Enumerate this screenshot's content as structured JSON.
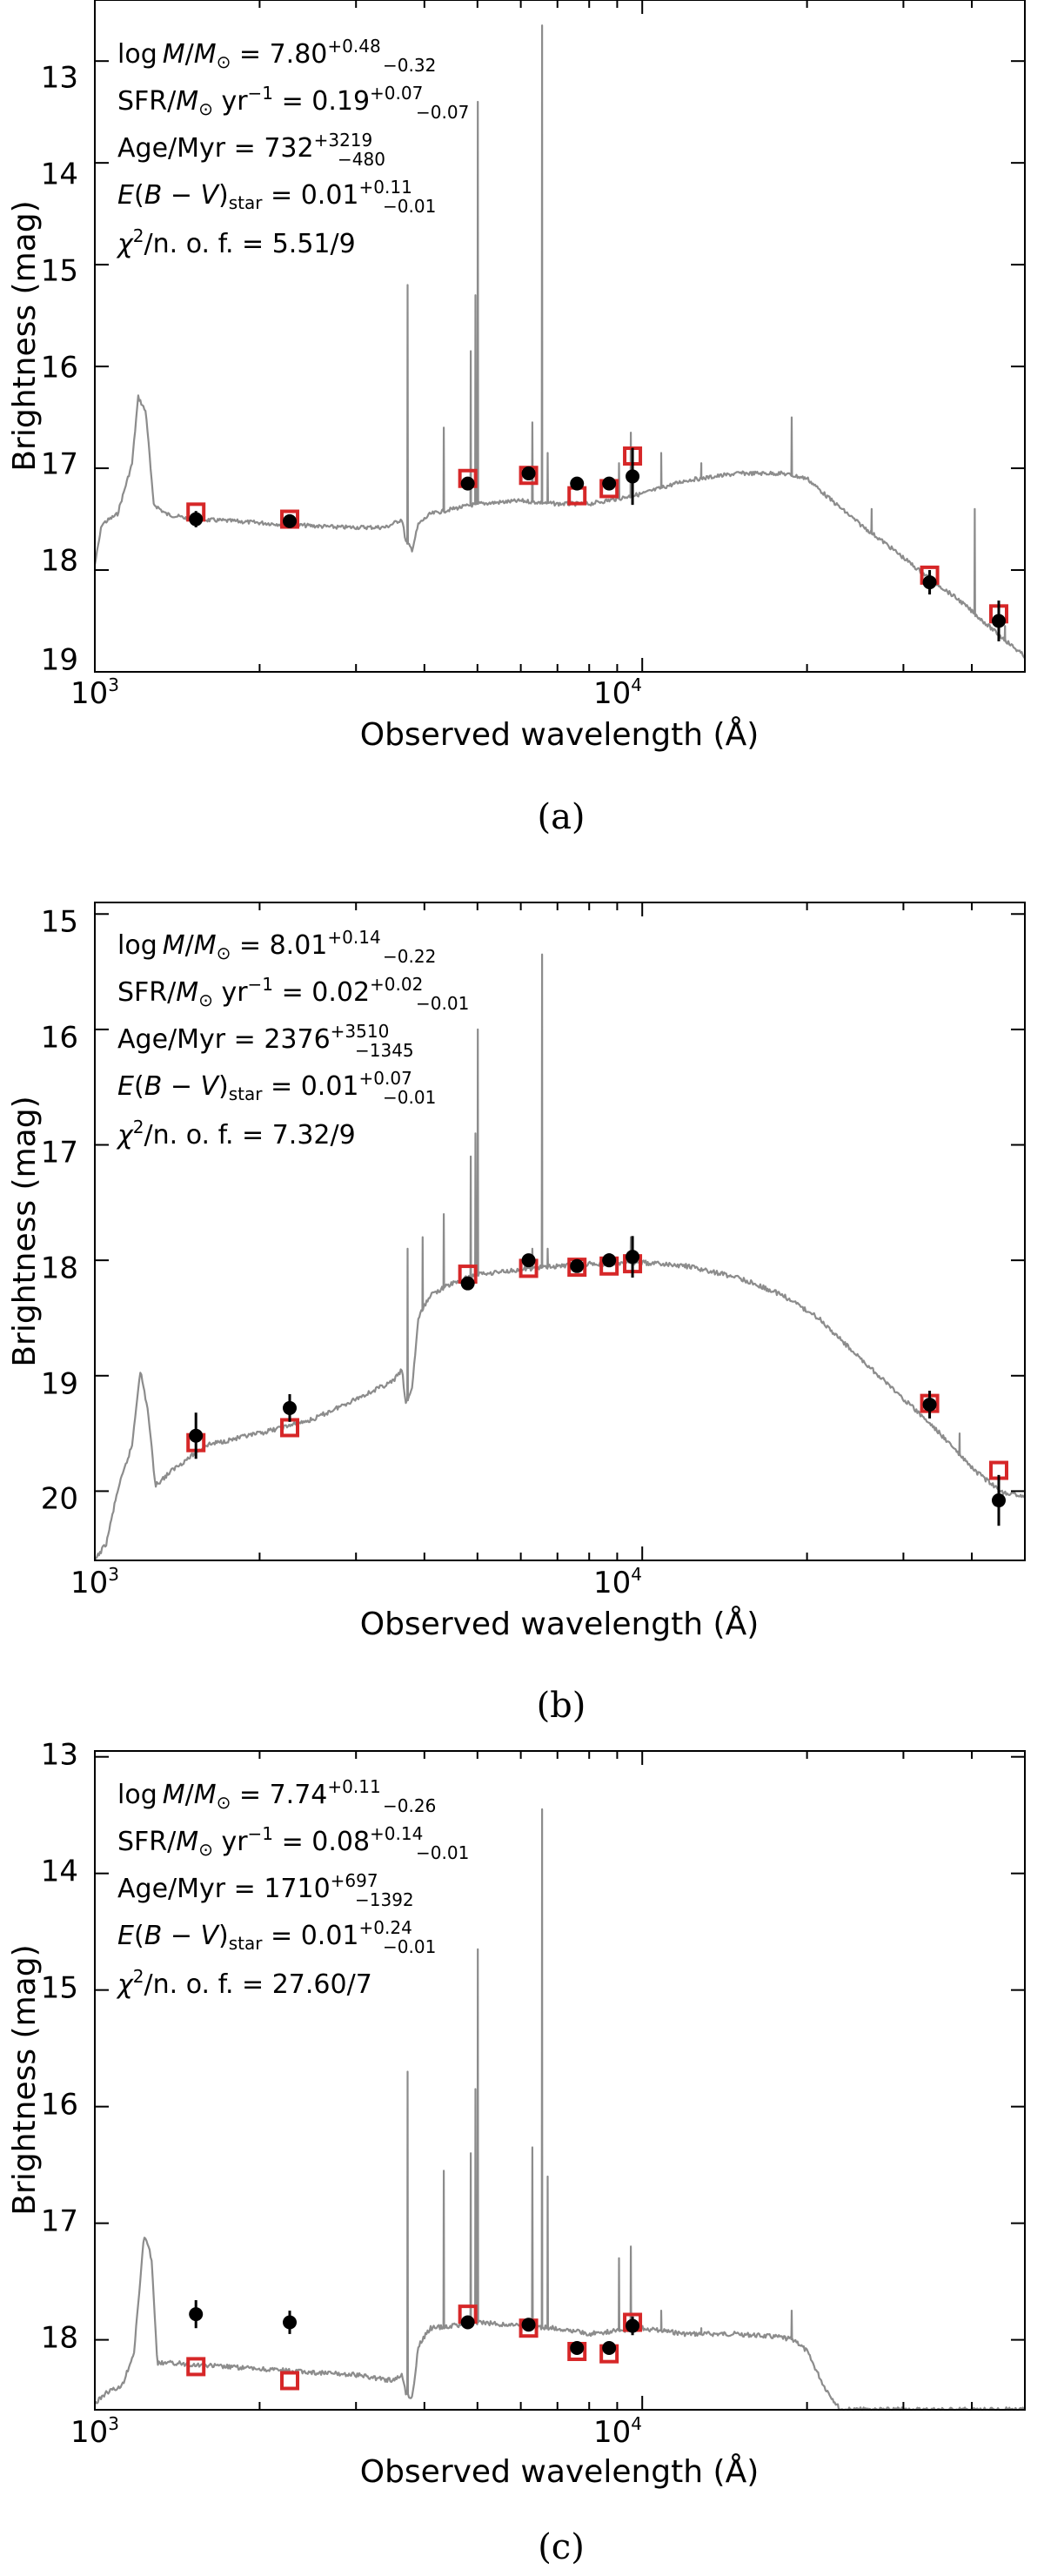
{
  "colors": {
    "model": "#8c8c8c",
    "observed": "#000000",
    "synthetic": "#d62728",
    "axis": "#000000"
  },
  "chart_data": [
    {
      "type": "scatter",
      "panel": "(a)",
      "xlabel": "Observed wavelength (Å)",
      "ylabel": "Brightness (mag)",
      "xscale": "log",
      "xlim": [
        1000,
        50000
      ],
      "ylim": [
        19,
        12.4
      ],
      "x_ticks": [
        {
          "value": 1000,
          "base": "10",
          "exp": "3"
        },
        {
          "value": 10000,
          "base": "10",
          "exp": "4"
        }
      ],
      "y_ticks": [
        "13",
        "14",
        "15",
        "16",
        "17",
        "18",
        "19"
      ],
      "annotations": {
        "logm": {
          "prefix": "log",
          "var": "M",
          "mid": "/",
          "var2": "M",
          "sub": "⊙",
          "value": " = 7.80",
          "up": "+0.48",
          "dn": "−0.32"
        },
        "sfr": {
          "prefix": "SFR/",
          "var": "M",
          "sub": "⊙",
          "mid": " yr",
          "supx": "−1",
          "value": " = 0.19",
          "up": "+0.07",
          "dn": "−0.07"
        },
        "age": {
          "prefix": "Age/Myr",
          "value": " = 732",
          "up": "+3219",
          "dn": "−480"
        },
        "ebv": {
          "var": "E",
          "mid": "(",
          "var2": "B",
          "mid2": " − ",
          "var3": "V",
          "mid3": ")",
          "sub": "star",
          "value": " = 0.01",
          "up": "+0.11",
          "dn": "−0.01"
        },
        "chi": {
          "var": "χ",
          "supx": "2",
          "mid": "/n. o. f. = 5.51/9"
        }
      },
      "model_spectrum": {
        "continuum": [
          [
            1000,
            17.95
          ],
          [
            1030,
            17.55
          ],
          [
            1100,
            17.45
          ],
          [
            1170,
            16.95
          ],
          [
            1200,
            16.3
          ],
          [
            1240,
            16.45
          ],
          [
            1280,
            17.35
          ],
          [
            1350,
            17.45
          ],
          [
            1500,
            17.5
          ],
          [
            1800,
            17.52
          ],
          [
            2200,
            17.55
          ],
          [
            2800,
            17.58
          ],
          [
            3400,
            17.58
          ],
          [
            3640,
            17.5
          ],
          [
            3700,
            17.72
          ],
          [
            3800,
            17.8
          ],
          [
            3900,
            17.55
          ],
          [
            4100,
            17.45
          ],
          [
            4500,
            17.4
          ],
          [
            5000,
            17.35
          ],
          [
            6000,
            17.32
          ],
          [
            7000,
            17.35
          ],
          [
            8000,
            17.35
          ],
          [
            9000,
            17.3
          ],
          [
            10000,
            17.25
          ],
          [
            12000,
            17.12
          ],
          [
            15000,
            17.05
          ],
          [
            18000,
            17.05
          ],
          [
            20000,
            17.1
          ],
          [
            22000,
            17.3
          ],
          [
            25000,
            17.55
          ],
          [
            28000,
            17.75
          ],
          [
            32000,
            18.0
          ],
          [
            38000,
            18.3
          ],
          [
            44000,
            18.6
          ],
          [
            50000,
            18.85
          ]
        ],
        "lines": [
          [
            3727,
            15.2
          ],
          [
            4340,
            16.6
          ],
          [
            4861,
            15.85
          ],
          [
            4959,
            15.3
          ],
          [
            5007,
            13.4
          ],
          [
            6300,
            16.55
          ],
          [
            6563,
            12.65
          ],
          [
            6717,
            16.85
          ],
          [
            9069,
            16.95
          ],
          [
            9531,
            16.65
          ],
          [
            10830,
            16.85
          ],
          [
            12820,
            16.95
          ],
          [
            18750,
            16.5
          ],
          [
            26250,
            17.4
          ],
          [
            40500,
            17.4
          ],
          [
            46000,
            18.55
          ]
        ]
      },
      "observed": [
        {
          "x": 1530,
          "y": 17.5,
          "err": 0.08
        },
        {
          "x": 2270,
          "y": 17.52,
          "err": 0.05
        },
        {
          "x": 4800,
          "y": 17.15,
          "err": 0.05
        },
        {
          "x": 6200,
          "y": 17.05,
          "err": 0.05
        },
        {
          "x": 7600,
          "y": 17.15,
          "err": 0.05
        },
        {
          "x": 8700,
          "y": 17.15,
          "err": 0.05
        },
        {
          "x": 9600,
          "y": 17.08,
          "err": 0.28
        },
        {
          "x": 33500,
          "y": 18.12,
          "err": 0.12
        },
        {
          "x": 44800,
          "y": 18.5,
          "err": 0.2
        }
      ],
      "synthetic": [
        {
          "x": 1530,
          "y": 17.43
        },
        {
          "x": 2270,
          "y": 17.5
        },
        {
          "x": 4800,
          "y": 17.1
        },
        {
          "x": 6200,
          "y": 17.07
        },
        {
          "x": 7600,
          "y": 17.27
        },
        {
          "x": 8700,
          "y": 17.2
        },
        {
          "x": 9600,
          "y": 16.88
        },
        {
          "x": 33500,
          "y": 18.05
        },
        {
          "x": 44800,
          "y": 18.43
        }
      ]
    },
    {
      "type": "scatter",
      "panel": "(b)",
      "xlabel": "Observed wavelength (Å)",
      "ylabel": "Brightness (mag)",
      "xscale": "log",
      "xlim": [
        1000,
        50000
      ],
      "ylim": [
        20.6,
        14.9
      ],
      "x_ticks": [
        {
          "value": 1000,
          "base": "10",
          "exp": "3"
        },
        {
          "value": 10000,
          "base": "10",
          "exp": "4"
        }
      ],
      "y_ticks": [
        "15",
        "16",
        "17",
        "18",
        "19",
        "20"
      ],
      "annotations": {
        "logm": {
          "prefix": "log",
          "var": "M",
          "mid": "/",
          "var2": "M",
          "sub": "⊙",
          "value": " = 8.01",
          "up": "+0.14",
          "dn": "−0.22"
        },
        "sfr": {
          "prefix": "SFR/",
          "var": "M",
          "sub": "⊙",
          "mid": " yr",
          "supx": "−1",
          "value": " = 0.02",
          "up": "+0.02",
          "dn": "−0.01"
        },
        "age": {
          "prefix": "Age/Myr",
          "value": " = 2376",
          "up": "+3510",
          "dn": "−1345"
        },
        "ebv": {
          "var": "E",
          "mid": "(",
          "var2": "B",
          "mid2": " − ",
          "var3": "V",
          "mid3": ")",
          "sub": "star",
          "value": " = 0.01",
          "up": "+0.07",
          "dn": "−0.01"
        },
        "chi": {
          "var": "χ",
          "supx": "2",
          "mid": "/n. o. f. = 7.32/9"
        }
      },
      "model_spectrum": {
        "continuum": [
          [
            1000,
            20.6
          ],
          [
            1050,
            20.45
          ],
          [
            1100,
            20.0
          ],
          [
            1170,
            19.6
          ],
          [
            1210,
            18.95
          ],
          [
            1250,
            19.3
          ],
          [
            1290,
            19.95
          ],
          [
            1400,
            19.8
          ],
          [
            1600,
            19.6
          ],
          [
            2000,
            19.5
          ],
          [
            2500,
            19.38
          ],
          [
            3000,
            19.2
          ],
          [
            3500,
            19.05
          ],
          [
            3640,
            18.95
          ],
          [
            3700,
            19.25
          ],
          [
            3800,
            19.1
          ],
          [
            3900,
            18.5
          ],
          [
            4100,
            18.3
          ],
          [
            4500,
            18.2
          ],
          [
            5000,
            18.12
          ],
          [
            6000,
            18.08
          ],
          [
            7000,
            18.05
          ],
          [
            8000,
            18.03
          ],
          [
            9000,
            18.03
          ],
          [
            10000,
            18.02
          ],
          [
            12000,
            18.05
          ],
          [
            15000,
            18.15
          ],
          [
            18000,
            18.3
          ],
          [
            21000,
            18.5
          ],
          [
            25000,
            18.85
          ],
          [
            30000,
            19.2
          ],
          [
            35000,
            19.5
          ],
          [
            40000,
            19.8
          ],
          [
            45000,
            20.0
          ],
          [
            50000,
            20.05
          ]
        ],
        "lines": [
          [
            3727,
            17.9
          ],
          [
            3970,
            17.8
          ],
          [
            4340,
            17.6
          ],
          [
            4861,
            17.1
          ],
          [
            4959,
            16.9
          ],
          [
            5007,
            16.0
          ],
          [
            6300,
            17.9
          ],
          [
            6563,
            15.35
          ],
          [
            6717,
            17.9
          ],
          [
            9531,
            17.8
          ],
          [
            38000,
            19.5
          ]
        ]
      },
      "observed": [
        {
          "x": 1530,
          "y": 19.52,
          "err": 0.2
        },
        {
          "x": 2270,
          "y": 19.28,
          "err": 0.12
        },
        {
          "x": 4800,
          "y": 18.2,
          "err": 0.05
        },
        {
          "x": 6200,
          "y": 18.0,
          "err": 0.05
        },
        {
          "x": 7600,
          "y": 18.05,
          "err": 0.05
        },
        {
          "x": 8700,
          "y": 18.0,
          "err": 0.06
        },
        {
          "x": 9600,
          "y": 17.97,
          "err": 0.18
        },
        {
          "x": 33500,
          "y": 19.25,
          "err": 0.12
        },
        {
          "x": 44800,
          "y": 20.08,
          "err": 0.22
        }
      ],
      "synthetic": [
        {
          "x": 1530,
          "y": 19.58
        },
        {
          "x": 2270,
          "y": 19.45
        },
        {
          "x": 4800,
          "y": 18.12
        },
        {
          "x": 6200,
          "y": 18.07
        },
        {
          "x": 7600,
          "y": 18.06
        },
        {
          "x": 8700,
          "y": 18.05
        },
        {
          "x": 9600,
          "y": 18.03
        },
        {
          "x": 33500,
          "y": 19.24
        },
        {
          "x": 44800,
          "y": 19.82
        }
      ]
    },
    {
      "type": "scatter",
      "panel": "(c)",
      "xlabel": "Observed wavelength (Å)",
      "ylabel": "Brightness (mag)",
      "xscale": "log",
      "xlim": [
        1000,
        50000
      ],
      "ylim": [
        18.6,
        12.95
      ],
      "x_ticks": [
        {
          "value": 1000,
          "base": "10",
          "exp": "3"
        },
        {
          "value": 10000,
          "base": "10",
          "exp": "4"
        }
      ],
      "y_ticks": [
        "13",
        "14",
        "15",
        "16",
        "17",
        "18"
      ],
      "annotations": {
        "logm": {
          "prefix": "log",
          "var": "M",
          "mid": "/",
          "var2": "M",
          "sub": "⊙",
          "value": " = 7.74",
          "up": "+0.11",
          "dn": "−0.26"
        },
        "sfr": {
          "prefix": "SFR/",
          "var": "M",
          "sub": "⊙",
          "mid": " yr",
          "supx": "−1",
          "value": " = 0.08",
          "up": "+0.14",
          "dn": "−0.01"
        },
        "age": {
          "prefix": "Age/Myr",
          "value": " = 1710",
          "up": "+697",
          "dn": "−1392"
        },
        "ebv": {
          "var": "E",
          "mid": "(",
          "var2": "B",
          "mid2": " − ",
          "var3": "V",
          "mid3": ")",
          "sub": "star",
          "value": " = 0.01",
          "up": "+0.24",
          "dn": "−0.01"
        },
        "chi": {
          "var": "χ",
          "supx": "2",
          "mid": "/n. o. f. = 27.60/7"
        }
      },
      "model_spectrum": {
        "continuum": [
          [
            1000,
            18.55
          ],
          [
            1050,
            18.45
          ],
          [
            1120,
            18.4
          ],
          [
            1180,
            18.1
          ],
          [
            1230,
            17.1
          ],
          [
            1270,
            17.3
          ],
          [
            1300,
            18.2
          ],
          [
            1400,
            18.2
          ],
          [
            1600,
            18.22
          ],
          [
            2000,
            18.25
          ],
          [
            2500,
            18.28
          ],
          [
            3000,
            18.3
          ],
          [
            3500,
            18.35
          ],
          [
            3640,
            18.3
          ],
          [
            3700,
            18.45
          ],
          [
            3800,
            18.5
          ],
          [
            3900,
            18.05
          ],
          [
            4100,
            17.9
          ],
          [
            4500,
            17.88
          ],
          [
            5000,
            17.85
          ],
          [
            6000,
            17.88
          ],
          [
            7000,
            17.9
          ],
          [
            8000,
            17.95
          ],
          [
            9000,
            17.92
          ],
          [
            10000,
            17.9
          ],
          [
            12000,
            17.95
          ],
          [
            15000,
            17.95
          ],
          [
            18000,
            17.98
          ],
          [
            19000,
            18.0
          ],
          [
            20000,
            18.1
          ],
          [
            21500,
            18.4
          ],
          [
            23000,
            18.6
          ],
          [
            50000,
            18.6
          ]
        ],
        "lines": [
          [
            3727,
            15.7
          ],
          [
            4340,
            16.55
          ],
          [
            4861,
            16.4
          ],
          [
            4959,
            15.85
          ],
          [
            5007,
            14.65
          ],
          [
            6300,
            16.35
          ],
          [
            6563,
            13.45
          ],
          [
            6717,
            16.6
          ],
          [
            9069,
            17.3
          ],
          [
            9531,
            17.2
          ],
          [
            10830,
            17.75
          ],
          [
            12820,
            17.9
          ],
          [
            18750,
            17.75
          ]
        ]
      },
      "observed": [
        {
          "x": 1530,
          "y": 17.78,
          "err": 0.12
        },
        {
          "x": 2270,
          "y": 17.85,
          "err": 0.1
        },
        {
          "x": 4800,
          "y": 17.85,
          "err": 0.05
        },
        {
          "x": 6200,
          "y": 17.87,
          "err": 0.05
        },
        {
          "x": 7600,
          "y": 18.07,
          "err": 0.05
        },
        {
          "x": 8700,
          "y": 18.07,
          "err": 0.05
        },
        {
          "x": 9600,
          "y": 17.88,
          "err": 0.08
        }
      ],
      "synthetic": [
        {
          "x": 1530,
          "y": 18.23
        },
        {
          "x": 2270,
          "y": 18.35
        },
        {
          "x": 4800,
          "y": 17.78
        },
        {
          "x": 6200,
          "y": 17.9
        },
        {
          "x": 7600,
          "y": 18.1
        },
        {
          "x": 8700,
          "y": 18.12
        },
        {
          "x": 9600,
          "y": 17.85
        }
      ]
    }
  ]
}
